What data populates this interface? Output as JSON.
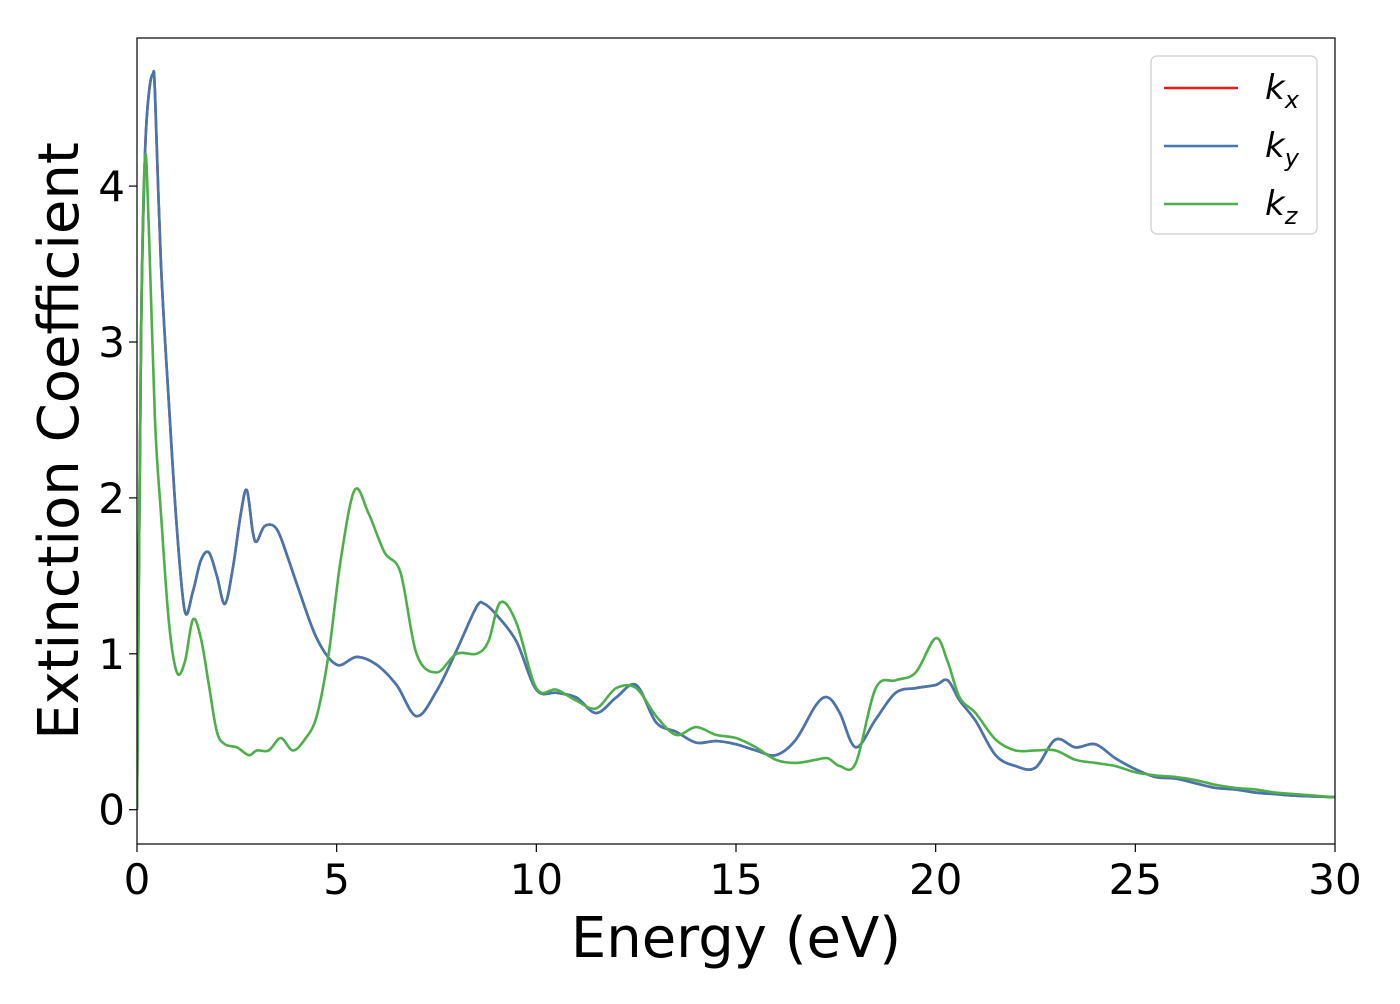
{
  "chart_data": {
    "type": "line",
    "title": "",
    "xlabel": "Energy (eV)",
    "ylabel": "Extinction Coefficient",
    "xlim": [
      0,
      30
    ],
    "ylim": [
      -0.22,
      4.95
    ],
    "xticks": [
      0,
      5,
      10,
      15,
      20,
      25,
      30
    ],
    "yticks": [
      0,
      1,
      2,
      3,
      4
    ],
    "grid": false,
    "legend_position": "top-right",
    "series": [
      {
        "name": "k_x",
        "legend_base": "k",
        "legend_sub": "x",
        "color": "#e41a1c",
        "x": [
          0,
          0.1,
          0.2,
          0.3,
          0.4,
          0.45,
          0.6,
          0.8,
          1.0,
          1.2,
          1.4,
          1.6,
          1.8,
          2.0,
          2.2,
          2.4,
          2.6,
          2.75,
          2.9,
          3.0,
          3.2,
          3.5,
          3.8,
          4.0,
          4.5,
          5.0,
          5.5,
          6.0,
          6.5,
          7.0,
          7.5,
          8.0,
          8.5,
          8.7,
          9.0,
          9.5,
          10.0,
          10.5,
          11.0,
          11.5,
          12.0,
          12.5,
          13.0,
          13.5,
          14.0,
          14.5,
          15.0,
          15.5,
          16.0,
          16.5,
          17.0,
          17.3,
          17.6,
          18.0,
          18.5,
          19.0,
          19.5,
          20.0,
          20.3,
          20.6,
          21.0,
          21.5,
          22.0,
          22.5,
          23.0,
          23.5,
          24.0,
          24.5,
          25.0,
          25.5,
          26.0,
          26.5,
          27.0,
          27.5,
          28.0,
          28.5,
          29.0,
          29.5,
          30.0
        ],
        "y": [
          0.0,
          3.0,
          4.2,
          4.6,
          4.72,
          4.6,
          3.5,
          2.6,
          1.8,
          1.27,
          1.4,
          1.6,
          1.65,
          1.5,
          1.32,
          1.55,
          1.9,
          2.05,
          1.78,
          1.72,
          1.82,
          1.8,
          1.6,
          1.45,
          1.1,
          0.93,
          0.98,
          0.93,
          0.8,
          0.6,
          0.76,
          1.02,
          1.3,
          1.32,
          1.25,
          1.08,
          0.77,
          0.75,
          0.72,
          0.62,
          0.72,
          0.8,
          0.56,
          0.5,
          0.43,
          0.44,
          0.42,
          0.38,
          0.35,
          0.45,
          0.67,
          0.72,
          0.62,
          0.4,
          0.58,
          0.75,
          0.78,
          0.8,
          0.83,
          0.7,
          0.57,
          0.35,
          0.28,
          0.27,
          0.45,
          0.4,
          0.42,
          0.33,
          0.26,
          0.21,
          0.2,
          0.17,
          0.14,
          0.13,
          0.11,
          0.1,
          0.09,
          0.085,
          0.08
        ]
      },
      {
        "name": "k_y",
        "legend_base": "k",
        "legend_sub": "y",
        "color": "#4477b0",
        "x": [
          0,
          0.1,
          0.2,
          0.3,
          0.4,
          0.45,
          0.6,
          0.8,
          1.0,
          1.2,
          1.4,
          1.6,
          1.8,
          2.0,
          2.2,
          2.4,
          2.6,
          2.75,
          2.9,
          3.0,
          3.2,
          3.5,
          3.8,
          4.0,
          4.5,
          5.0,
          5.5,
          6.0,
          6.5,
          7.0,
          7.5,
          8.0,
          8.5,
          8.7,
          9.0,
          9.5,
          10.0,
          10.5,
          11.0,
          11.5,
          12.0,
          12.5,
          13.0,
          13.5,
          14.0,
          14.5,
          15.0,
          15.5,
          16.0,
          16.5,
          17.0,
          17.3,
          17.6,
          18.0,
          18.5,
          19.0,
          19.5,
          20.0,
          20.3,
          20.6,
          21.0,
          21.5,
          22.0,
          22.5,
          23.0,
          23.5,
          24.0,
          24.5,
          25.0,
          25.5,
          26.0,
          26.5,
          27.0,
          27.5,
          28.0,
          28.5,
          29.0,
          29.5,
          30.0
        ],
        "y": [
          0.0,
          3.0,
          4.2,
          4.6,
          4.72,
          4.6,
          3.5,
          2.6,
          1.8,
          1.27,
          1.4,
          1.6,
          1.65,
          1.5,
          1.32,
          1.55,
          1.9,
          2.05,
          1.78,
          1.72,
          1.82,
          1.8,
          1.6,
          1.45,
          1.1,
          0.93,
          0.98,
          0.93,
          0.8,
          0.6,
          0.76,
          1.02,
          1.3,
          1.32,
          1.25,
          1.08,
          0.77,
          0.75,
          0.72,
          0.62,
          0.72,
          0.8,
          0.56,
          0.5,
          0.43,
          0.44,
          0.42,
          0.38,
          0.35,
          0.45,
          0.67,
          0.72,
          0.62,
          0.4,
          0.58,
          0.75,
          0.78,
          0.8,
          0.83,
          0.7,
          0.57,
          0.35,
          0.28,
          0.27,
          0.45,
          0.4,
          0.42,
          0.33,
          0.26,
          0.21,
          0.2,
          0.17,
          0.14,
          0.13,
          0.11,
          0.1,
          0.09,
          0.085,
          0.08
        ]
      },
      {
        "name": "k_z",
        "legend_base": "k",
        "legend_sub": "z",
        "color": "#4daf4a",
        "x": [
          0,
          0.1,
          0.2,
          0.3,
          0.45,
          0.6,
          0.8,
          1.0,
          1.2,
          1.4,
          1.6,
          1.8,
          2.0,
          2.2,
          2.5,
          2.8,
          3.0,
          3.3,
          3.6,
          3.9,
          4.2,
          4.5,
          4.8,
          5.1,
          5.45,
          5.8,
          6.2,
          6.6,
          7.0,
          7.5,
          8.0,
          8.5,
          8.8,
          9.1,
          9.5,
          10.0,
          10.5,
          11.0,
          11.5,
          12.0,
          12.5,
          13.0,
          13.5,
          14.0,
          14.5,
          15.0,
          15.5,
          16.0,
          16.5,
          17.0,
          17.3,
          17.6,
          18.0,
          18.5,
          19.0,
          19.5,
          20.0,
          20.3,
          20.6,
          21.0,
          21.5,
          22.0,
          22.5,
          23.0,
          23.5,
          24.0,
          24.5,
          25.0,
          25.5,
          26.0,
          26.5,
          27.0,
          27.5,
          28.0,
          28.5,
          29.0,
          29.5,
          30.0
        ],
        "y": [
          0.0,
          3.0,
          4.18,
          3.7,
          2.5,
          1.9,
          1.2,
          0.88,
          0.95,
          1.22,
          1.1,
          0.8,
          0.5,
          0.42,
          0.4,
          0.35,
          0.38,
          0.38,
          0.46,
          0.38,
          0.45,
          0.6,
          1.0,
          1.6,
          2.05,
          1.9,
          1.65,
          1.52,
          1.0,
          0.88,
          1.0,
          1.0,
          1.08,
          1.33,
          1.2,
          0.78,
          0.77,
          0.7,
          0.65,
          0.78,
          0.78,
          0.6,
          0.48,
          0.53,
          0.48,
          0.46,
          0.4,
          0.32,
          0.3,
          0.32,
          0.33,
          0.28,
          0.3,
          0.78,
          0.83,
          0.88,
          1.1,
          0.95,
          0.72,
          0.62,
          0.45,
          0.38,
          0.38,
          0.38,
          0.32,
          0.3,
          0.28,
          0.24,
          0.22,
          0.21,
          0.19,
          0.16,
          0.14,
          0.13,
          0.11,
          0.1,
          0.09,
          0.08
        ]
      }
    ]
  }
}
